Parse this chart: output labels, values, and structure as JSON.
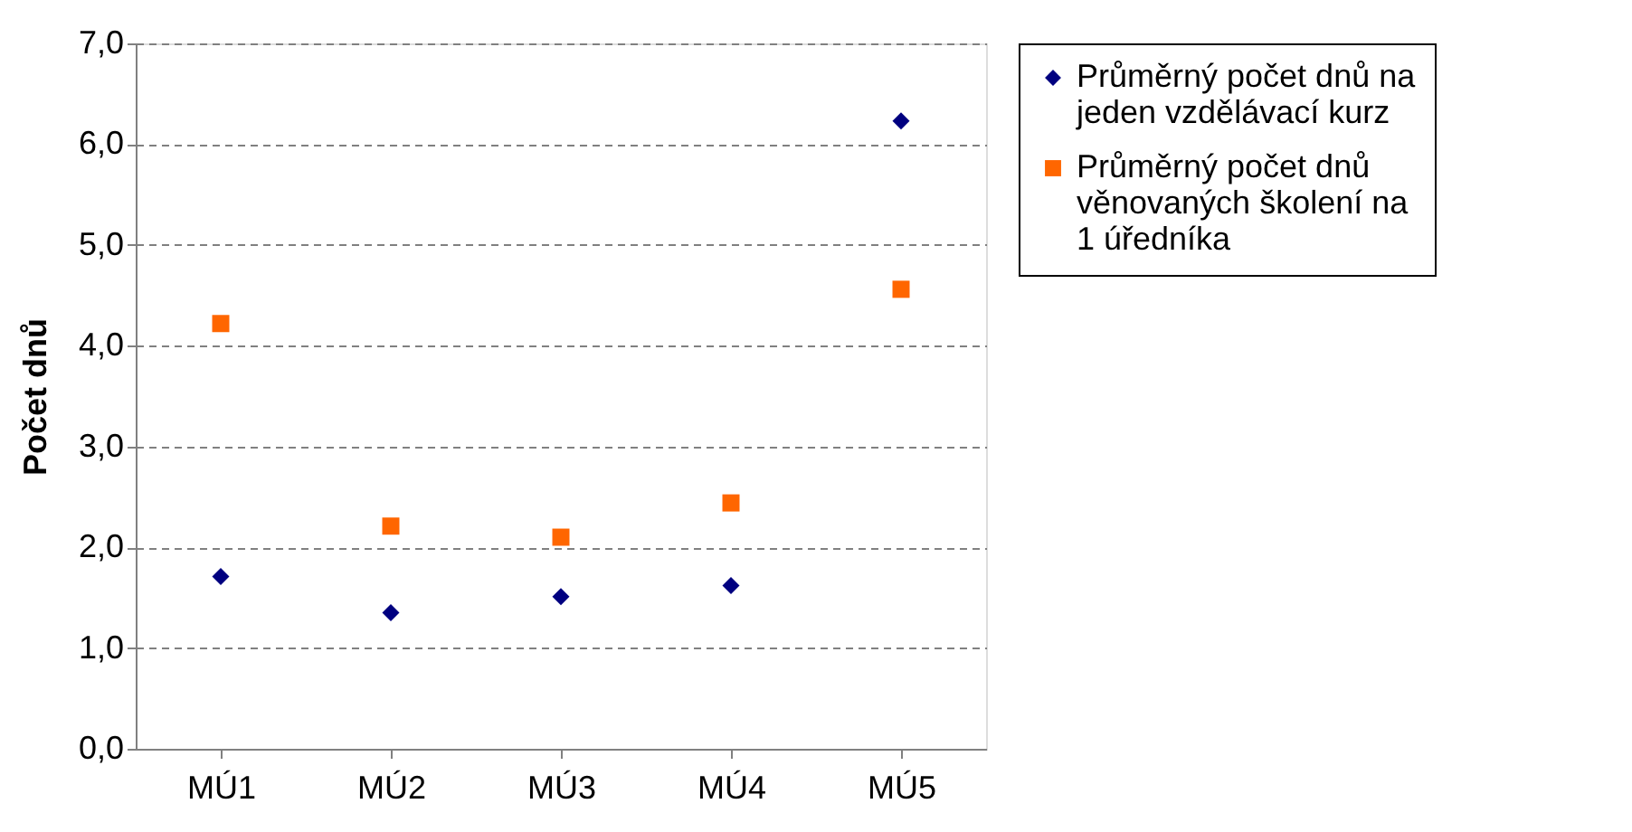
{
  "chart_data": {
    "type": "scatter",
    "ylabel": "Počet dnů",
    "categories": [
      "MÚ1",
      "MÚ2",
      "MÚ3",
      "MÚ4",
      "MÚ5"
    ],
    "series": [
      {
        "name": "Průměrný počet dnů na jeden vzdělávací kurz",
        "color": "#000080",
        "marker": "diamond",
        "values": [
          1.71,
          1.35,
          1.51,
          1.62,
          6.23
        ]
      },
      {
        "name": "Průměrný počet dnů věnovaných školení na 1 úředníka",
        "color": "#ff6600",
        "marker": "square",
        "values": [
          4.22,
          2.21,
          2.1,
          2.44,
          4.56
        ]
      }
    ],
    "ylim": [
      0,
      7
    ],
    "yticks": [
      {
        "value": 0,
        "label": "0,0"
      },
      {
        "value": 1,
        "label": "1,0"
      },
      {
        "value": 2,
        "label": "2,0"
      },
      {
        "value": 3,
        "label": "3,0"
      },
      {
        "value": 4,
        "label": "4,0"
      },
      {
        "value": 5,
        "label": "5,0"
      },
      {
        "value": 6,
        "label": "6,0"
      },
      {
        "value": 7,
        "label": "7,0"
      }
    ],
    "grid": "y",
    "legend": "right"
  }
}
